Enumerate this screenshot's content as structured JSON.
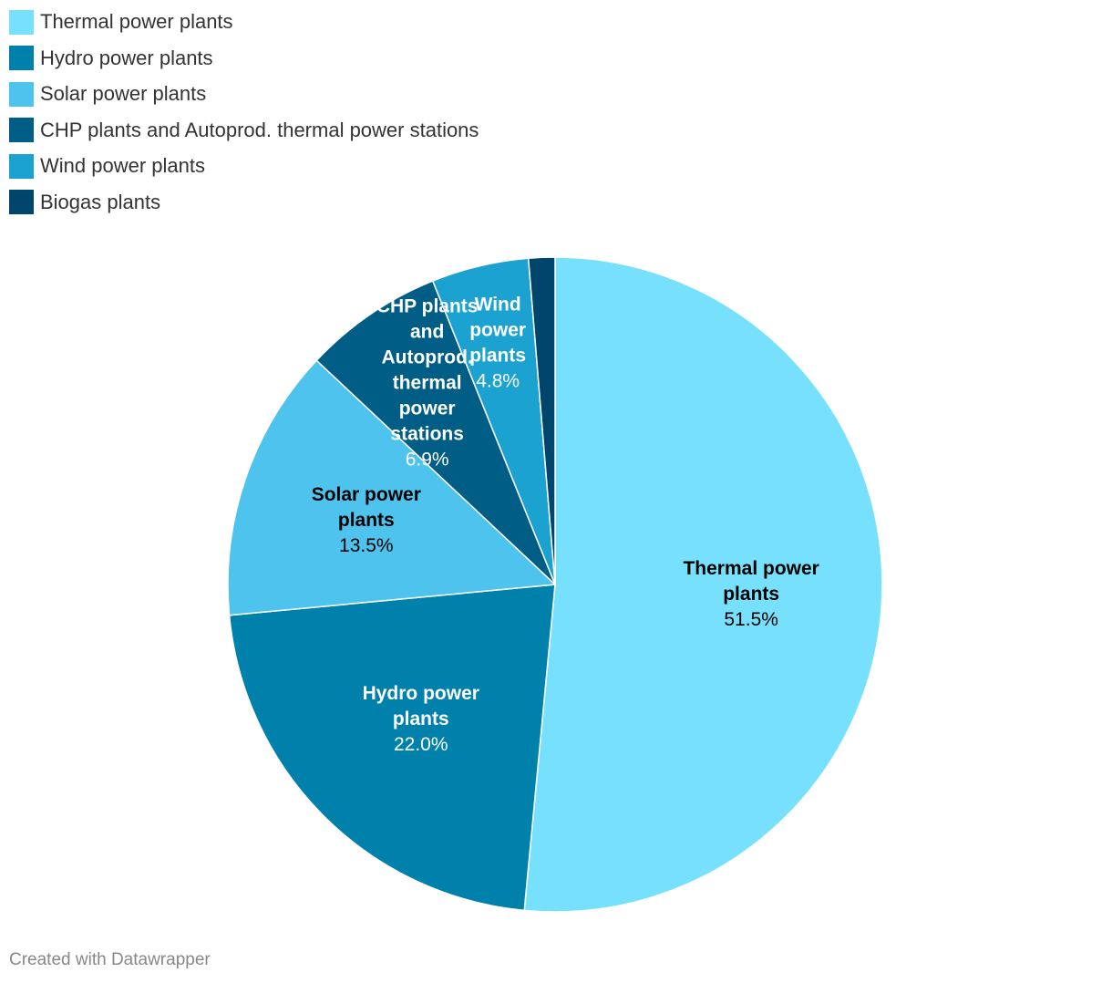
{
  "chart_data": {
    "type": "pie",
    "slices": [
      {
        "name": "Thermal power plants",
        "value": 51.5,
        "display": "51.5%",
        "label_lines": [
          "Thermal power",
          "plants"
        ],
        "color": "#77e1fd",
        "label_color": "#000000"
      },
      {
        "name": "Hydro power plants",
        "value": 22.0,
        "display": "22.0%",
        "label_lines": [
          "Hydro power",
          "plants"
        ],
        "color": "#0081ac",
        "label_color": "#ffffff"
      },
      {
        "name": "Solar power plants",
        "value": 13.5,
        "display": "13.5%",
        "label_lines": [
          "Solar power",
          "plants"
        ],
        "color": "#4dc3ed",
        "label_color": "#000000"
      },
      {
        "name": "CHP plants and Autoprod. thermal power stations",
        "value": 6.9,
        "display": "6.9%",
        "label_lines": [
          "CHP plants",
          "and",
          "Autoprod.",
          "thermal",
          "power",
          "stations"
        ],
        "color": "#005e86",
        "label_color": "#ffffff"
      },
      {
        "name": "Wind power plants",
        "value": 4.8,
        "display": "4.8%",
        "label_lines": [
          "Wind",
          "power",
          "plants"
        ],
        "color": "#1ba2d0",
        "label_color": "#ffffff"
      },
      {
        "name": "Biogas plants",
        "value": 1.3,
        "display": "",
        "label_lines": [],
        "color": "#00456c",
        "label_color": "#ffffff"
      }
    ],
    "legend_position": "top-left"
  },
  "credit": "Created with Datawrapper"
}
